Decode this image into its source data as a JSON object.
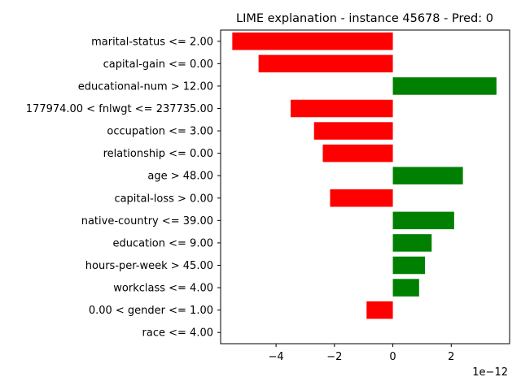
{
  "chart_data": {
    "type": "bar",
    "orientation": "horizontal",
    "title": "LIME explanation - instance 45678 - Pred: 0",
    "xlabel": "",
    "ylabel": "",
    "x_scale_label": "1e−12",
    "xlim": [
      -5.9,
      4.0
    ],
    "xticks": [
      -4,
      -2,
      0,
      2
    ],
    "xtick_labels": [
      "−4",
      "−2",
      "0",
      "2"
    ],
    "grid": false,
    "legend": "none",
    "colors": {
      "positive": "#008000",
      "negative": "#ff0000"
    },
    "categories": [
      "marital-status <= 2.00",
      "capital-gain <= 0.00",
      "educational-num > 12.00",
      "177974.00 < fnlwgt <= 237735.00",
      "occupation <= 3.00",
      "relationship <= 0.00",
      "age > 48.00",
      "capital-loss > 0.00",
      "native-country <= 39.00",
      "education <= 9.00",
      "hours-per-week > 45.00",
      "workclass <= 4.00",
      "0.00 < gender <= 1.00",
      "race <= 4.00"
    ],
    "values": [
      -5.5,
      -4.6,
      3.55,
      -3.5,
      -2.7,
      -2.4,
      2.4,
      -2.15,
      2.1,
      1.33,
      1.1,
      0.9,
      -0.9,
      0.0
    ]
  }
}
